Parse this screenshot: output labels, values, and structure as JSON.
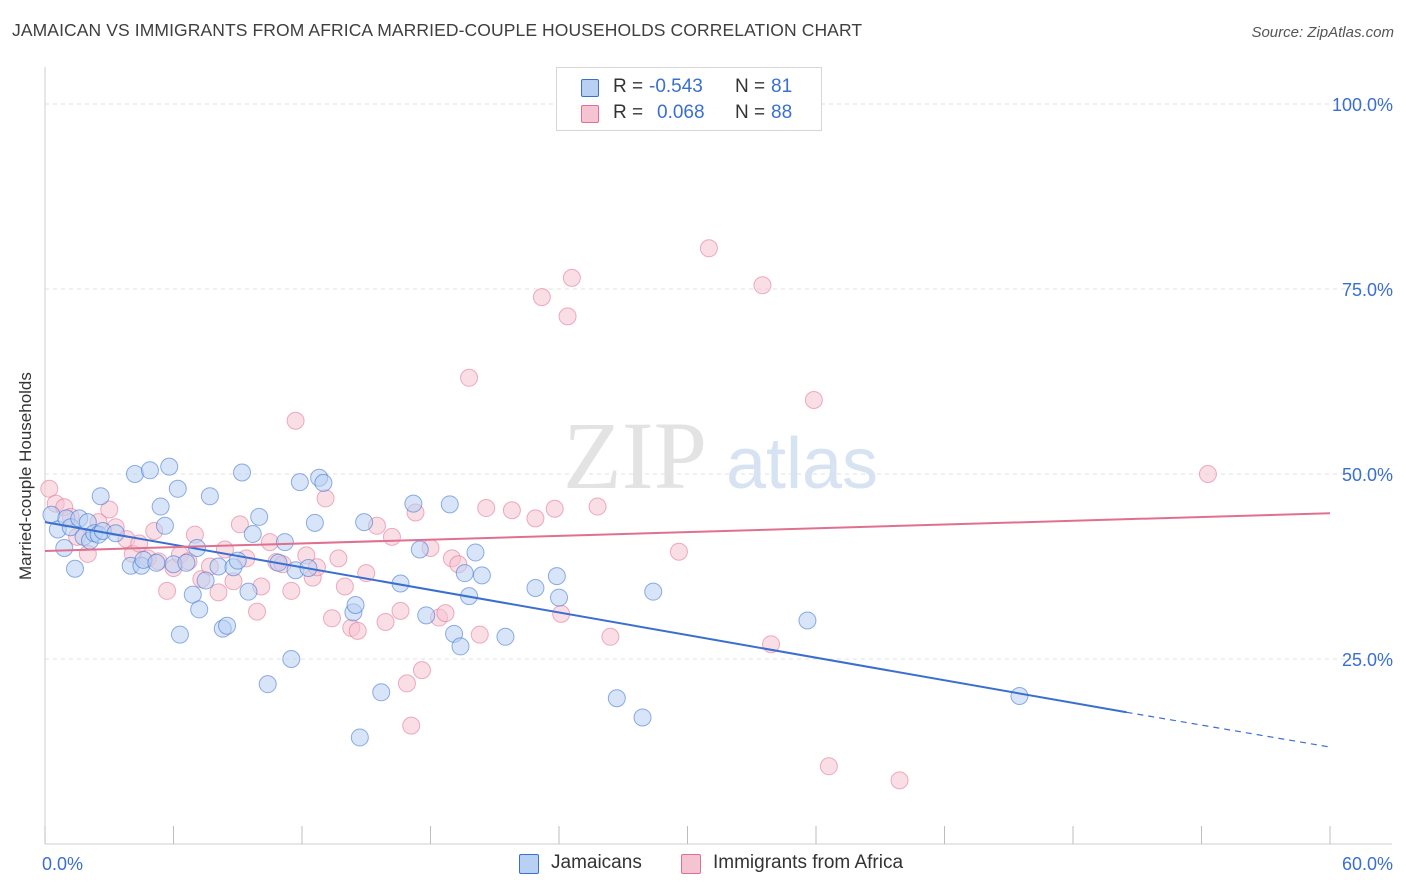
{
  "title": "JAMAICAN VS IMMIGRANTS FROM AFRICA MARRIED-COUPLE HOUSEHOLDS CORRELATION CHART",
  "source": "Source: ZipAtlas.com",
  "watermark": {
    "zip": "ZIP",
    "atlas": "atlas"
  },
  "legend": {
    "r_label": "R =",
    "n_label": "N =",
    "series": [
      {
        "r": "-0.543",
        "n": "81",
        "color": "#3a6fd0",
        "fill": "#b8d0f2"
      },
      {
        "r": "0.068",
        "n": "88",
        "color": "#e0708f",
        "fill": "#f6c3d2"
      }
    ]
  },
  "chart_data": {
    "type": "scatter",
    "xlabel": "",
    "ylabel": "Married-couple Households",
    "xlim": [
      0,
      60
    ],
    "ylim": [
      0,
      105
    ],
    "x_tick_labels": [
      {
        "value": 0,
        "label": "0.0%"
      },
      {
        "value": 60,
        "label": "60.0%"
      }
    ],
    "y_tick_labels": [
      {
        "value": 25,
        "label": "25.0%"
      },
      {
        "value": 50,
        "label": "50.0%"
      },
      {
        "value": 75,
        "label": "75.0%"
      },
      {
        "value": 100,
        "label": "100.0%"
      }
    ],
    "grid": "horizontal dashed",
    "legend_position": "bottom-center",
    "series": [
      {
        "name": "Jamaicans",
        "color": "#3a6fd0",
        "fill": "#b8d0f2",
        "trend": {
          "x0": 0,
          "y0": 43.5,
          "x1": 50.5,
          "y1": 17.8,
          "x_dash_end": 60,
          "y_dash_end": 13.1
        },
        "points": [
          [
            0.3,
            44.5
          ],
          [
            0.6,
            42.5
          ],
          [
            0.9,
            40
          ],
          [
            1.0,
            44
          ],
          [
            1.2,
            42.8
          ],
          [
            1.4,
            37.2
          ],
          [
            1.6,
            44
          ],
          [
            1.8,
            41.5
          ],
          [
            2.0,
            43.5
          ],
          [
            2.1,
            41
          ],
          [
            2.3,
            42
          ],
          [
            2.5,
            41.8
          ],
          [
            2.6,
            47
          ],
          [
            2.7,
            42.3
          ],
          [
            3.3,
            42
          ],
          [
            4.0,
            37.6
          ],
          [
            4.2,
            50
          ],
          [
            4.5,
            37.6
          ],
          [
            4.6,
            38.4
          ],
          [
            4.9,
            50.5
          ],
          [
            5.2,
            38
          ],
          [
            5.4,
            45.6
          ],
          [
            5.6,
            43
          ],
          [
            5.8,
            51
          ],
          [
            6.0,
            37.8
          ],
          [
            6.2,
            48
          ],
          [
            6.3,
            28.3
          ],
          [
            6.6,
            38
          ],
          [
            6.9,
            33.7
          ],
          [
            7.1,
            40
          ],
          [
            7.2,
            31.7
          ],
          [
            7.5,
            35.6
          ],
          [
            7.7,
            47
          ],
          [
            8.1,
            37.5
          ],
          [
            8.3,
            29.1
          ],
          [
            8.5,
            29.5
          ],
          [
            8.8,
            37.4
          ],
          [
            9.0,
            38.3
          ],
          [
            9.2,
            50.2
          ],
          [
            9.5,
            34.1
          ],
          [
            9.7,
            41.9
          ],
          [
            10.0,
            44.2
          ],
          [
            10.4,
            21.6
          ],
          [
            10.9,
            38
          ],
          [
            11.2,
            40.8
          ],
          [
            11.5,
            25
          ],
          [
            11.7,
            37
          ],
          [
            11.9,
            48.9
          ],
          [
            12.3,
            37.3
          ],
          [
            12.6,
            43.4
          ],
          [
            12.8,
            49.5
          ],
          [
            13.0,
            48.8
          ],
          [
            14.4,
            31.3
          ],
          [
            14.5,
            32.3
          ],
          [
            14.7,
            14.4
          ],
          [
            14.9,
            43.5
          ],
          [
            15.7,
            20.5
          ],
          [
            16.6,
            35.2
          ],
          [
            17.2,
            46
          ],
          [
            17.5,
            39.8
          ],
          [
            17.8,
            30.9
          ],
          [
            18.9,
            45.9
          ],
          [
            19.1,
            28.4
          ],
          [
            19.4,
            26.7
          ],
          [
            19.6,
            36.6
          ],
          [
            19.8,
            33.5
          ],
          [
            20.1,
            39.4
          ],
          [
            20.4,
            36.3
          ],
          [
            21.5,
            28
          ],
          [
            22.9,
            34.6
          ],
          [
            23.9,
            36.2
          ],
          [
            24.0,
            33.3
          ],
          [
            26.7,
            19.7
          ],
          [
            27.9,
            17.1
          ],
          [
            28.4,
            34.1
          ],
          [
            35.6,
            30.2
          ],
          [
            45.5,
            20
          ]
        ]
      },
      {
        "name": "Immigrants from Africa",
        "color": "#e0708f",
        "fill": "#f6c3d2",
        "trend": {
          "x0": 0,
          "y0": 39.6,
          "x1": 60,
          "y1": 44.7
        },
        "points": [
          [
            0.2,
            48
          ],
          [
            0.5,
            46
          ],
          [
            0.9,
            45.5
          ],
          [
            1.2,
            44.2
          ],
          [
            1.5,
            41.5
          ],
          [
            2.0,
            39.2
          ],
          [
            2.5,
            43.5
          ],
          [
            3.0,
            45.2
          ],
          [
            3.3,
            42.8
          ],
          [
            3.8,
            41.2
          ],
          [
            4.1,
            39.2
          ],
          [
            4.4,
            40.6
          ],
          [
            4.8,
            38.6
          ],
          [
            5.1,
            42.3
          ],
          [
            5.3,
            38.2
          ],
          [
            5.7,
            34.2
          ],
          [
            6.0,
            37.3
          ],
          [
            6.3,
            39.1
          ],
          [
            6.7,
            38.2
          ],
          [
            7.0,
            41.8
          ],
          [
            7.3,
            35.8
          ],
          [
            7.7,
            37.5
          ],
          [
            8.1,
            34
          ],
          [
            8.4,
            39.8
          ],
          [
            8.8,
            35.5
          ],
          [
            9.1,
            43.2
          ],
          [
            9.4,
            38.6
          ],
          [
            9.9,
            31.4
          ],
          [
            10.1,
            34.8
          ],
          [
            10.5,
            40.8
          ],
          [
            10.8,
            38.1
          ],
          [
            11.1,
            37.8
          ],
          [
            11.5,
            34.2
          ],
          [
            11.7,
            57.2
          ],
          [
            12.2,
            39
          ],
          [
            12.5,
            36
          ],
          [
            12.7,
            37.4
          ],
          [
            13.1,
            46.7
          ],
          [
            13.4,
            30.5
          ],
          [
            13.7,
            38.6
          ],
          [
            14.0,
            34.8
          ],
          [
            14.3,
            29.2
          ],
          [
            14.6,
            28.8
          ],
          [
            15.0,
            36.6
          ],
          [
            15.5,
            43
          ],
          [
            15.9,
            30
          ],
          [
            16.2,
            41.5
          ],
          [
            16.6,
            31.5
          ],
          [
            16.9,
            21.7
          ],
          [
            17.1,
            16
          ],
          [
            17.3,
            44.8
          ],
          [
            17.6,
            23.5
          ],
          [
            18.0,
            40
          ],
          [
            18.4,
            30.6
          ],
          [
            18.7,
            31.2
          ],
          [
            19.0,
            38.6
          ],
          [
            19.3,
            37.8
          ],
          [
            19.8,
            63
          ],
          [
            20.3,
            28.3
          ],
          [
            20.6,
            45.4
          ],
          [
            21.8,
            45.1
          ],
          [
            22.9,
            44
          ],
          [
            23.2,
            73.9
          ],
          [
            23.8,
            45.3
          ],
          [
            24.1,
            31.1
          ],
          [
            24.4,
            71.3
          ],
          [
            24.6,
            76.5
          ],
          [
            25.8,
            45.6
          ],
          [
            26.4,
            28
          ],
          [
            29.6,
            39.5
          ],
          [
            31.0,
            80.5
          ],
          [
            33.5,
            75.5
          ],
          [
            33.9,
            27
          ],
          [
            35.9,
            60
          ],
          [
            36.6,
            10.5
          ],
          [
            39.9,
            8.6
          ],
          [
            54.3,
            50
          ]
        ]
      }
    ]
  }
}
